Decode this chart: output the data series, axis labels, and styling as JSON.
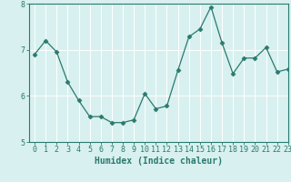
{
  "x": [
    0,
    1,
    2,
    3,
    4,
    5,
    6,
    7,
    8,
    9,
    10,
    11,
    12,
    13,
    14,
    15,
    16,
    17,
    18,
    19,
    20,
    21,
    22,
    23
  ],
  "y": [
    6.9,
    7.2,
    6.95,
    6.3,
    5.9,
    5.55,
    5.55,
    5.42,
    5.42,
    5.48,
    6.05,
    5.72,
    5.78,
    6.55,
    7.28,
    7.45,
    7.93,
    7.15,
    6.48,
    6.82,
    6.82,
    7.05,
    6.52,
    6.58
  ],
  "line_color": "#2a7a6e",
  "marker": "D",
  "marker_size": 2.5,
  "background_color": "#d8f0f0",
  "grid_color": "#ffffff",
  "xlabel": "Humidex (Indice chaleur)",
  "ylim": [
    5,
    8
  ],
  "xlim": [
    -0.5,
    23
  ],
  "yticks": [
    5,
    6,
    7,
    8
  ],
  "xtick_labels": [
    "0",
    "1",
    "2",
    "3",
    "4",
    "5",
    "6",
    "7",
    "8",
    "9",
    "10",
    "11",
    "12",
    "13",
    "14",
    "15",
    "16",
    "17",
    "18",
    "19",
    "20",
    "21",
    "22",
    "23"
  ],
  "xlabel_fontsize": 7,
  "tick_fontsize": 6,
  "line_width": 0.9,
  "grid_linewidth": 0.7
}
